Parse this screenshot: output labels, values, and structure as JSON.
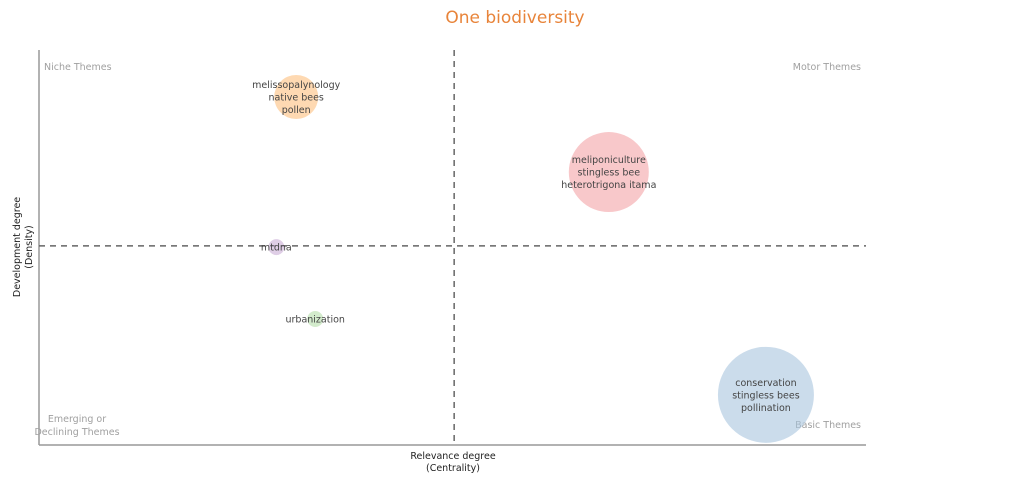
{
  "chart_data": {
    "type": "scatter",
    "title": "One biodiversity",
    "xlabel": [
      "Relevance degree",
      "(Centrality)"
    ],
    "ylabel": [
      "Development degree",
      "(Density)"
    ],
    "xlim": [
      0,
      100
    ],
    "ylim": [
      0,
      100
    ],
    "grid": false,
    "reference_lines": {
      "x": 50.2,
      "y": 50.4
    },
    "quadrants": {
      "top_left": [
        "Niche Themes"
      ],
      "top_right": [
        "Motor Themes"
      ],
      "bottom_left": [
        "Emerging or",
        "Declining Themes"
      ],
      "bottom_right": [
        "Basic Themes"
      ]
    },
    "points": [
      {
        "labels": [
          "melissopalynology",
          "native bees",
          "pollen"
        ],
        "x": 31.1,
        "y": 88.1,
        "size": 22,
        "color": "#fdbf7f"
      },
      {
        "labels": [
          "meliponiculture",
          "stingless bee",
          "heterotrigona itama"
        ],
        "x": 68.9,
        "y": 69.1,
        "size": 40,
        "color": "#f4a3a6"
      },
      {
        "labels": [
          "mtdna"
        ],
        "x": 28.7,
        "y": 50.1,
        "size": 8,
        "color": "#c9aed6"
      },
      {
        "labels": [
          "urbanization"
        ],
        "x": 33.4,
        "y": 31.9,
        "size": 8,
        "color": "#b5deaa"
      },
      {
        "labels": [
          "conservation",
          "stingless bees",
          "pollination"
        ],
        "x": 87.9,
        "y": 12.7,
        "size": 48,
        "color": "#a8c4de"
      }
    ]
  }
}
